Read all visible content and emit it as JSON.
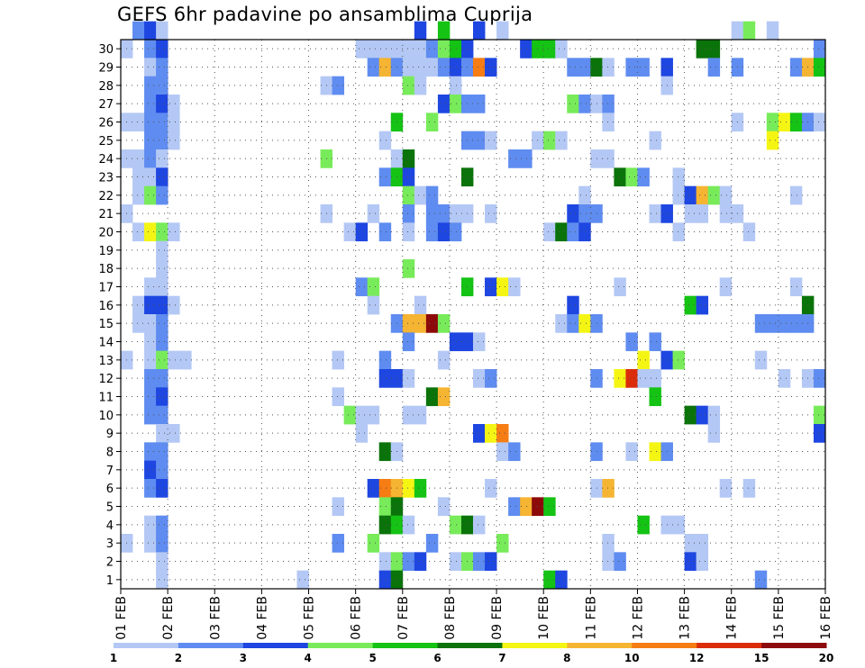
{
  "chart_data": {
    "type": "heatmap",
    "title": "GEFS 6hr padavine po ansamblima Cuprija",
    "xlabel": "",
    "ylabel": "",
    "x_tick_labels": [
      "01 FEB",
      "02 FEB",
      "03 FEB",
      "04 FEB",
      "05 FEB",
      "06 FEB",
      "07 FEB",
      "08 FEB",
      "09 FEB",
      "10 FEB",
      "11 FEB",
      "12 FEB",
      "13 FEB",
      "14 FEB",
      "15 FEB",
      "16 FEB"
    ],
    "y_tick_labels": [
      "1",
      "2",
      "3",
      "4",
      "5",
      "6",
      "7",
      "8",
      "9",
      "10",
      "11",
      "12",
      "13",
      "14",
      "15",
      "16",
      "17",
      "18",
      "19",
      "20",
      "21",
      "22",
      "23",
      "24",
      "25",
      "26",
      "27",
      "28",
      "29",
      "30"
    ],
    "ylim": [
      0,
      30
    ],
    "xlim_steps": [
      0,
      60
    ],
    "steps_per_day": 4,
    "grid": true,
    "colorbar": {
      "tick_labels": [
        "1",
        "2",
        "3",
        "4",
        "5",
        "6",
        "7",
        "8",
        "10",
        "12",
        "15",
        "20"
      ],
      "colors": [
        "#b4c8f5",
        "#5f8cf0",
        "#1e46e1",
        "#78eb5a",
        "#14c314",
        "#0a730a",
        "#f5f514",
        "#f5b432",
        "#f57d14",
        "#dc2d0a",
        "#8c0a0a"
      ]
    },
    "cells": [
      [
        30,
        1,
        2
      ],
      [
        30,
        2,
        3
      ],
      [
        30,
        3,
        1
      ],
      [
        30,
        25,
        3
      ],
      [
        30,
        27,
        5
      ],
      [
        30,
        30,
        3
      ],
      [
        30,
        32,
        1
      ],
      [
        30,
        52,
        1
      ],
      [
        30,
        53,
        4
      ],
      [
        30,
        55,
        1
      ],
      [
        29,
        0,
        1
      ],
      [
        29,
        2,
        2
      ],
      [
        29,
        3,
        3
      ],
      [
        29,
        20,
        1
      ],
      [
        29,
        21,
        1
      ],
      [
        29,
        22,
        1
      ],
      [
        29,
        23,
        1
      ],
      [
        29,
        24,
        1
      ],
      [
        29,
        25,
        1
      ],
      [
        29,
        26,
        2
      ],
      [
        29,
        27,
        4
      ],
      [
        29,
        28,
        5
      ],
      [
        29,
        29,
        3
      ],
      [
        29,
        34,
        3
      ],
      [
        29,
        35,
        5
      ],
      [
        29,
        36,
        5
      ],
      [
        29,
        37,
        1
      ],
      [
        29,
        49,
        6
      ],
      [
        29,
        50,
        6
      ],
      [
        29,
        59,
        2
      ],
      [
        28,
        2,
        1
      ],
      [
        28,
        3,
        2
      ],
      [
        28,
        21,
        2
      ],
      [
        28,
        22,
        8
      ],
      [
        28,
        23,
        2
      ],
      [
        28,
        24,
        1
      ],
      [
        28,
        25,
        1
      ],
      [
        28,
        26,
        1
      ],
      [
        28,
        27,
        2
      ],
      [
        28,
        28,
        3
      ],
      [
        28,
        29,
        2
      ],
      [
        28,
        30,
        9
      ],
      [
        28,
        31,
        3
      ],
      [
        28,
        38,
        2
      ],
      [
        28,
        39,
        2
      ],
      [
        28,
        40,
        6
      ],
      [
        28,
        41,
        1
      ],
      [
        28,
        43,
        2
      ],
      [
        28,
        44,
        2
      ],
      [
        28,
        46,
        3
      ],
      [
        28,
        50,
        2
      ],
      [
        28,
        52,
        2
      ],
      [
        28,
        57,
        2
      ],
      [
        28,
        58,
        8
      ],
      [
        28,
        59,
        5
      ],
      [
        27,
        2,
        2
      ],
      [
        27,
        3,
        2
      ],
      [
        27,
        17,
        1
      ],
      [
        27,
        18,
        2
      ],
      [
        27,
        24,
        4
      ],
      [
        27,
        25,
        1
      ],
      [
        27,
        28,
        1
      ],
      [
        27,
        46,
        1
      ],
      [
        26,
        2,
        2
      ],
      [
        26,
        3,
        3
      ],
      [
        26,
        4,
        1
      ],
      [
        26,
        27,
        3
      ],
      [
        26,
        28,
        4
      ],
      [
        26,
        29,
        2
      ],
      [
        26,
        30,
        2
      ],
      [
        26,
        38,
        4
      ],
      [
        26,
        39,
        2
      ],
      [
        26,
        40,
        1
      ],
      [
        26,
        41,
        2
      ],
      [
        25,
        0,
        1
      ],
      [
        25,
        1,
        1
      ],
      [
        25,
        2,
        2
      ],
      [
        25,
        3,
        2
      ],
      [
        25,
        4,
        1
      ],
      [
        25,
        23,
        5
      ],
      [
        25,
        26,
        4
      ],
      [
        25,
        41,
        1
      ],
      [
        25,
        52,
        1
      ],
      [
        25,
        55,
        4
      ],
      [
        25,
        56,
        7
      ],
      [
        25,
        57,
        5
      ],
      [
        25,
        58,
        2
      ],
      [
        25,
        59,
        1
      ],
      [
        24,
        2,
        2
      ],
      [
        24,
        3,
        2
      ],
      [
        24,
        4,
        1
      ],
      [
        24,
        22,
        1
      ],
      [
        24,
        29,
        2
      ],
      [
        24,
        30,
        2
      ],
      [
        24,
        31,
        1
      ],
      [
        24,
        35,
        1
      ],
      [
        24,
        36,
        4
      ],
      [
        24,
        37,
        1
      ],
      [
        24,
        45,
        1
      ],
      [
        24,
        55,
        7
      ],
      [
        23,
        0,
        1
      ],
      [
        23,
        1,
        1
      ],
      [
        23,
        2,
        2
      ],
      [
        23,
        3,
        1
      ],
      [
        23,
        17,
        4
      ],
      [
        23,
        23,
        1
      ],
      [
        23,
        24,
        6
      ],
      [
        23,
        33,
        2
      ],
      [
        23,
        34,
        2
      ],
      [
        23,
        40,
        1
      ],
      [
        23,
        41,
        1
      ],
      [
        22,
        1,
        1
      ],
      [
        22,
        2,
        1
      ],
      [
        22,
        3,
        3
      ],
      [
        22,
        22,
        2
      ],
      [
        22,
        23,
        5
      ],
      [
        22,
        24,
        3
      ],
      [
        22,
        29,
        6
      ],
      [
        22,
        42,
        6
      ],
      [
        22,
        43,
        4
      ],
      [
        22,
        44,
        2
      ],
      [
        22,
        47,
        1
      ],
      [
        21,
        1,
        1
      ],
      [
        21,
        2,
        4
      ],
      [
        21,
        3,
        2
      ],
      [
        21,
        24,
        4
      ],
      [
        21,
        25,
        1
      ],
      [
        21,
        26,
        2
      ],
      [
        21,
        39,
        1
      ],
      [
        21,
        47,
        1
      ],
      [
        21,
        48,
        3
      ],
      [
        21,
        49,
        8
      ],
      [
        21,
        50,
        4
      ],
      [
        21,
        51,
        1
      ],
      [
        21,
        57,
        1
      ],
      [
        20,
        0,
        1
      ],
      [
        20,
        17,
        1
      ],
      [
        20,
        21,
        1
      ],
      [
        20,
        24,
        2
      ],
      [
        20,
        26,
        2
      ],
      [
        20,
        27,
        2
      ],
      [
        20,
        28,
        1
      ],
      [
        20,
        29,
        1
      ],
      [
        20,
        31,
        1
      ],
      [
        20,
        38,
        3
      ],
      [
        20,
        39,
        2
      ],
      [
        20,
        40,
        2
      ],
      [
        20,
        45,
        1
      ],
      [
        20,
        46,
        3
      ],
      [
        20,
        48,
        1
      ],
      [
        20,
        49,
        1
      ],
      [
        20,
        51,
        1
      ],
      [
        20,
        52,
        1
      ],
      [
        19,
        1,
        1
      ],
      [
        19,
        2,
        7
      ],
      [
        19,
        3,
        4
      ],
      [
        19,
        4,
        1
      ],
      [
        19,
        19,
        1
      ],
      [
        19,
        20,
        3
      ],
      [
        19,
        22,
        2
      ],
      [
        19,
        24,
        1
      ],
      [
        19,
        26,
        2
      ],
      [
        19,
        27,
        3
      ],
      [
        19,
        28,
        2
      ],
      [
        19,
        36,
        1
      ],
      [
        19,
        37,
        6
      ],
      [
        19,
        38,
        2
      ],
      [
        19,
        39,
        3
      ],
      [
        19,
        47,
        1
      ],
      [
        19,
        53,
        1
      ],
      [
        18,
        3,
        1
      ],
      [
        17,
        3,
        1
      ],
      [
        17,
        24,
        4
      ],
      [
        16,
        2,
        1
      ],
      [
        16,
        3,
        1
      ],
      [
        16,
        20,
        2
      ],
      [
        16,
        21,
        4
      ],
      [
        16,
        29,
        5
      ],
      [
        16,
        31,
        3
      ],
      [
        16,
        32,
        7
      ],
      [
        16,
        33,
        1
      ],
      [
        16,
        42,
        1
      ],
      [
        16,
        51,
        1
      ],
      [
        16,
        57,
        1
      ],
      [
        15,
        1,
        1
      ],
      [
        15,
        2,
        3
      ],
      [
        15,
        3,
        3
      ],
      [
        15,
        4,
        1
      ],
      [
        15,
        21,
        1
      ],
      [
        15,
        25,
        1
      ],
      [
        15,
        38,
        3
      ],
      [
        15,
        48,
        5
      ],
      [
        15,
        49,
        3
      ],
      [
        15,
        58,
        6
      ],
      [
        14,
        1,
        1
      ],
      [
        14,
        2,
        1
      ],
      [
        14,
        3,
        2
      ],
      [
        14,
        23,
        2
      ],
      [
        14,
        24,
        8
      ],
      [
        14,
        25,
        8
      ],
      [
        14,
        26,
        11
      ],
      [
        14,
        27,
        4
      ],
      [
        14,
        37,
        1
      ],
      [
        14,
        38,
        2
      ],
      [
        14,
        39,
        7
      ],
      [
        14,
        40,
        2
      ],
      [
        14,
        54,
        2
      ],
      [
        14,
        55,
        2
      ],
      [
        14,
        56,
        2
      ],
      [
        14,
        57,
        2
      ],
      [
        14,
        58,
        2
      ],
      [
        13,
        2,
        1
      ],
      [
        13,
        3,
        2
      ],
      [
        13,
        24,
        2
      ],
      [
        13,
        28,
        3
      ],
      [
        13,
        29,
        3
      ],
      [
        13,
        30,
        1
      ],
      [
        13,
        43,
        2
      ],
      [
        13,
        45,
        2
      ],
      [
        12,
        0,
        1
      ],
      [
        12,
        2,
        1
      ],
      [
        12,
        3,
        4
      ],
      [
        12,
        4,
        1
      ],
      [
        12,
        5,
        1
      ],
      [
        12,
        18,
        1
      ],
      [
        12,
        22,
        2
      ],
      [
        12,
        27,
        1
      ],
      [
        12,
        44,
        7
      ],
      [
        12,
        46,
        3
      ],
      [
        12,
        47,
        4
      ],
      [
        12,
        54,
        1
      ],
      [
        11,
        2,
        2
      ],
      [
        11,
        3,
        2
      ],
      [
        11,
        22,
        3
      ],
      [
        11,
        23,
        3
      ],
      [
        11,
        24,
        1
      ],
      [
        11,
        30,
        1
      ],
      [
        11,
        31,
        2
      ],
      [
        11,
        40,
        2
      ],
      [
        11,
        42,
        7
      ],
      [
        11,
        43,
        10
      ],
      [
        11,
        44,
        1
      ],
      [
        11,
        45,
        1
      ],
      [
        11,
        56,
        1
      ],
      [
        11,
        58,
        1
      ],
      [
        11,
        59,
        2
      ],
      [
        10,
        2,
        2
      ],
      [
        10,
        3,
        3
      ],
      [
        10,
        18,
        1
      ],
      [
        10,
        26,
        6
      ],
      [
        10,
        27,
        8
      ],
      [
        10,
        45,
        5
      ],
      [
        9,
        2,
        2
      ],
      [
        9,
        3,
        2
      ],
      [
        9,
        19,
        4
      ],
      [
        9,
        20,
        1
      ],
      [
        9,
        21,
        1
      ],
      [
        9,
        24,
        1
      ],
      [
        9,
        25,
        1
      ],
      [
        9,
        48,
        6
      ],
      [
        9,
        49,
        3
      ],
      [
        9,
        50,
        1
      ],
      [
        9,
        59,
        4
      ],
      [
        8,
        3,
        1
      ],
      [
        8,
        4,
        1
      ],
      [
        8,
        20,
        1
      ],
      [
        8,
        30,
        3
      ],
      [
        8,
        31,
        7
      ],
      [
        8,
        32,
        9
      ],
      [
        8,
        50,
        1
      ],
      [
        8,
        59,
        3
      ],
      [
        7,
        2,
        2
      ],
      [
        7,
        3,
        2
      ],
      [
        7,
        22,
        6
      ],
      [
        7,
        23,
        1
      ],
      [
        7,
        32,
        1
      ],
      [
        7,
        33,
        2
      ],
      [
        7,
        40,
        2
      ],
      [
        7,
        43,
        1
      ],
      [
        7,
        45,
        7
      ],
      [
        7,
        46,
        2
      ],
      [
        6,
        2,
        3
      ],
      [
        6,
        3,
        2
      ],
      [
        5,
        2,
        2
      ],
      [
        5,
        3,
        3
      ],
      [
        5,
        21,
        3
      ],
      [
        5,
        22,
        9
      ],
      [
        5,
        23,
        8
      ],
      [
        5,
        24,
        7
      ],
      [
        5,
        25,
        5
      ],
      [
        5,
        31,
        1
      ],
      [
        5,
        40,
        1
      ],
      [
        5,
        41,
        8
      ],
      [
        5,
        51,
        1
      ],
      [
        5,
        53,
        1
      ],
      [
        4,
        18,
        1
      ],
      [
        4,
        22,
        4
      ],
      [
        4,
        23,
        6
      ],
      [
        4,
        27,
        1
      ],
      [
        4,
        33,
        2
      ],
      [
        4,
        34,
        8
      ],
      [
        4,
        35,
        11
      ],
      [
        4,
        36,
        5
      ],
      [
        3,
        2,
        1
      ],
      [
        3,
        3,
        2
      ],
      [
        3,
        22,
        6
      ],
      [
        3,
        23,
        5
      ],
      [
        3,
        24,
        1
      ],
      [
        3,
        28,
        4
      ],
      [
        3,
        29,
        6
      ],
      [
        3,
        30,
        1
      ],
      [
        3,
        44,
        5
      ],
      [
        3,
        46,
        1
      ],
      [
        3,
        47,
        1
      ],
      [
        2,
        0,
        1
      ],
      [
        2,
        2,
        1
      ],
      [
        2,
        3,
        2
      ],
      [
        2,
        18,
        2
      ],
      [
        2,
        21,
        4
      ],
      [
        2,
        26,
        2
      ],
      [
        2,
        32,
        4
      ],
      [
        2,
        41,
        1
      ],
      [
        2,
        48,
        1
      ],
      [
        2,
        49,
        1
      ],
      [
        1,
        3,
        1
      ],
      [
        1,
        22,
        1
      ],
      [
        1,
        23,
        4
      ],
      [
        1,
        24,
        2
      ],
      [
        1,
        25,
        3
      ],
      [
        1,
        28,
        1
      ],
      [
        1,
        29,
        4
      ],
      [
        1,
        30,
        2
      ],
      [
        1,
        31,
        3
      ],
      [
        1,
        41,
        1
      ],
      [
        1,
        42,
        2
      ],
      [
        1,
        48,
        3
      ],
      [
        1,
        49,
        1
      ],
      [
        0,
        3,
        1
      ],
      [
        0,
        15,
        1
      ],
      [
        0,
        22,
        3
      ],
      [
        0,
        23,
        6
      ],
      [
        0,
        36,
        5
      ],
      [
        0,
        37,
        3
      ],
      [
        0,
        54,
        2
      ]
    ]
  }
}
